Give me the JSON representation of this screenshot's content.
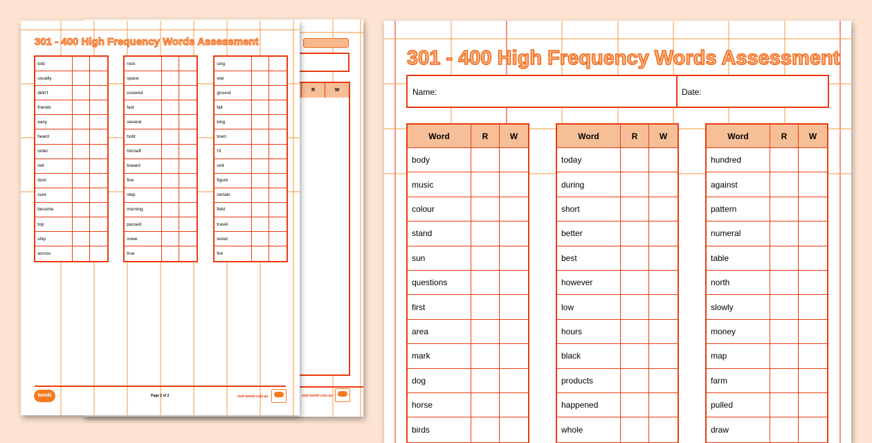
{
  "document_title": "301 - 400 High Frequency Words Assessment",
  "name_label": "Name:",
  "date_label": "Date:",
  "headers": {
    "word": "Word",
    "r": "R",
    "w": "W"
  },
  "front_page": {
    "columns": [
      [
        "body",
        "music",
        "colour",
        "stand",
        "sun",
        "questions",
        "first",
        "area",
        "mark",
        "dog",
        "horse",
        "birds"
      ],
      [
        "today",
        "during",
        "short",
        "better",
        "best",
        "however",
        "low",
        "hours",
        "black",
        "products",
        "happened",
        "whole"
      ],
      [
        "hundred",
        "against",
        "pattern",
        "numeral",
        "table",
        "north",
        "slowly",
        "money",
        "map",
        "farm",
        "pulled",
        "draw"
      ]
    ]
  },
  "page_two": {
    "columns": [
      [
        "told",
        "usually",
        "didn't",
        "friends",
        "easy",
        "heard",
        "order",
        "red",
        "door",
        "sure",
        "become",
        "top",
        "ship",
        "across"
      ],
      [
        "rock",
        "space",
        "covered",
        "fast",
        "several",
        "hold",
        "himself",
        "toward",
        "five",
        "step",
        "morning",
        "passed",
        "vowe",
        "true"
      ],
      [
        "sing",
        "war",
        "ground",
        "fall",
        "king",
        "town",
        "I'll",
        "unit",
        "figure",
        "certain",
        "field",
        "travel",
        "wood",
        "fire"
      ]
    ],
    "page_number": "Page 2 of 2",
    "website": "visit twinkl.com.au",
    "logo": "twinkl"
  },
  "colors": {
    "background": "#fce3d2",
    "border": "#ec3a10",
    "header_fill": "#f7bf98",
    "grid": "#f7a04a"
  }
}
